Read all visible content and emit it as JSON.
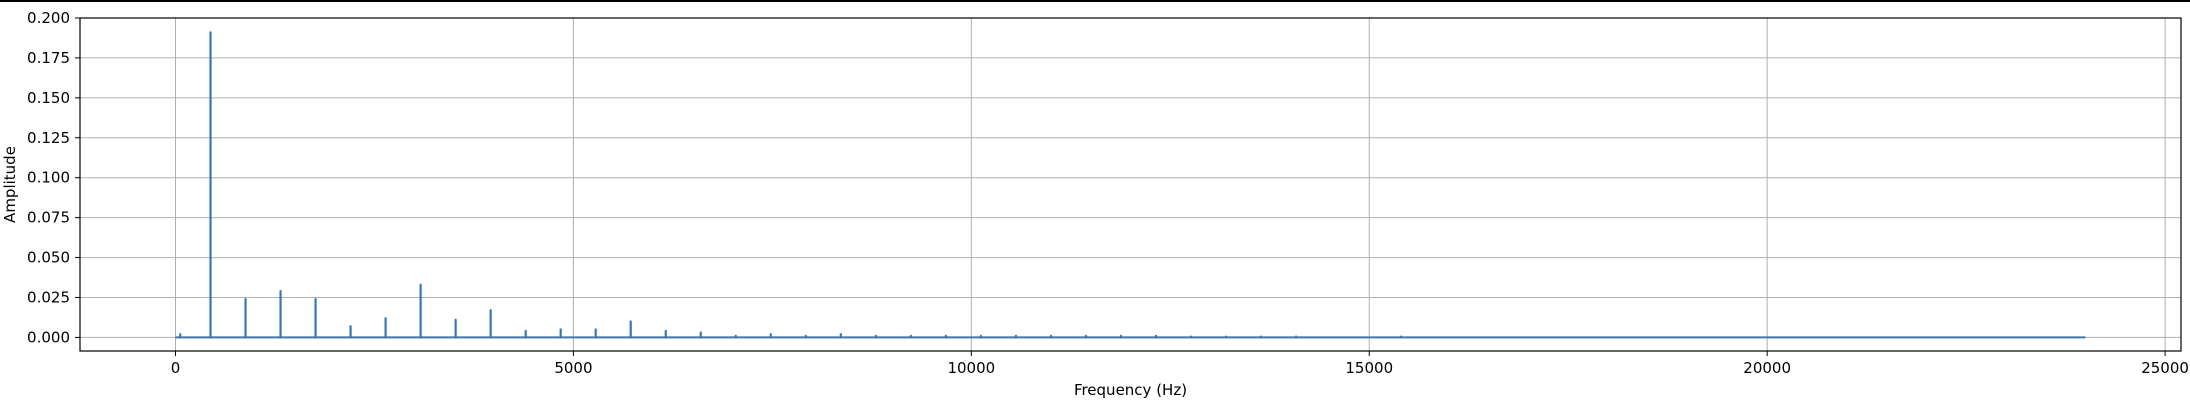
{
  "chart_data": {
    "type": "line",
    "title": "",
    "xlabel": "Frequency (Hz)",
    "ylabel": "Amplitude",
    "xlim": [
      -1200,
      25200
    ],
    "ylim": [
      -0.0085,
      0.2
    ],
    "xticks": [
      0,
      5000,
      10000,
      15000,
      20000,
      25000
    ],
    "xtick_labels": [
      "0",
      "5000",
      "10000",
      "15000",
      "20000",
      "25000"
    ],
    "yticks": [
      0.0,
      0.025,
      0.05,
      0.075,
      0.1,
      0.125,
      0.15,
      0.175,
      0.2
    ],
    "ytick_labels": [
      "0.000",
      "0.025",
      "0.050",
      "0.075",
      "0.100",
      "0.125",
      "0.150",
      "0.175",
      "0.200"
    ],
    "grid": true,
    "line_color": "#3a75b5",
    "x_range": [
      0,
      24000
    ],
    "series": [
      {
        "peaks": [
          {
            "x": 60,
            "y": 0.002
          },
          {
            "x": 440,
            "y": 0.191
          },
          {
            "x": 880,
            "y": 0.024
          },
          {
            "x": 1320,
            "y": 0.029
          },
          {
            "x": 1760,
            "y": 0.024
          },
          {
            "x": 2200,
            "y": 0.007
          },
          {
            "x": 2640,
            "y": 0.012
          },
          {
            "x": 3080,
            "y": 0.033
          },
          {
            "x": 3520,
            "y": 0.011
          },
          {
            "x": 3960,
            "y": 0.017
          },
          {
            "x": 4400,
            "y": 0.004
          },
          {
            "x": 4840,
            "y": 0.005
          },
          {
            "x": 5280,
            "y": 0.005
          },
          {
            "x": 5720,
            "y": 0.01
          },
          {
            "x": 6160,
            "y": 0.004
          },
          {
            "x": 6600,
            "y": 0.003
          },
          {
            "x": 7040,
            "y": 0.001
          },
          {
            "x": 7480,
            "y": 0.002
          },
          {
            "x": 7920,
            "y": 0.001
          },
          {
            "x": 8360,
            "y": 0.002
          },
          {
            "x": 8800,
            "y": 0.001
          },
          {
            "x": 9240,
            "y": 0.001
          },
          {
            "x": 9680,
            "y": 0.001
          },
          {
            "x": 10120,
            "y": 0.001
          },
          {
            "x": 10560,
            "y": 0.001
          },
          {
            "x": 11000,
            "y": 0.001
          },
          {
            "x": 11440,
            "y": 0.001
          },
          {
            "x": 11880,
            "y": 0.001
          },
          {
            "x": 12320,
            "y": 0.001
          },
          {
            "x": 12760,
            "y": 0.0005
          },
          {
            "x": 13200,
            "y": 0.0005
          },
          {
            "x": 13640,
            "y": 0.0005
          },
          {
            "x": 14080,
            "y": 0.0005
          },
          {
            "x": 15400,
            "y": 0.0005
          }
        ]
      }
    ]
  }
}
